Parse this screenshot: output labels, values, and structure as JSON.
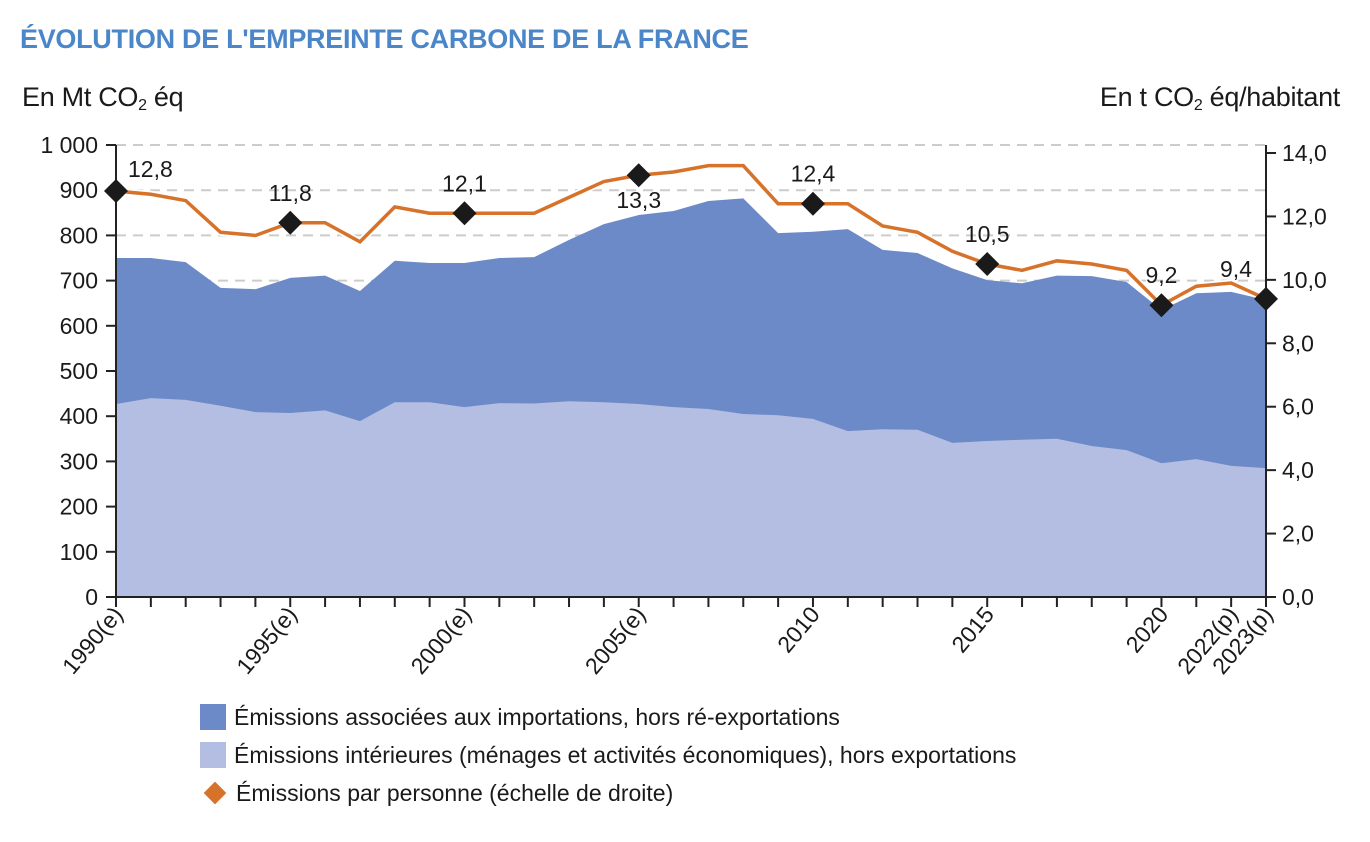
{
  "header": {
    "title": "ÉVOLUTION DE L'EMPREINTE CARBONE DE LA FRANCE",
    "left_unit_prefix": "En Mt CO",
    "left_unit_sub": "2",
    "left_unit_suffix": " éq",
    "right_unit_prefix": "En t CO",
    "right_unit_sub": "2",
    "right_unit_suffix": " éq/habitant"
  },
  "colors": {
    "title": "#4A86C8",
    "imports": "#6D8AC8",
    "domestic": "#B4BEE3",
    "per_person_line": "#D7722A",
    "marker": "#1a1a1a",
    "grid": "#cccccc"
  },
  "chart_data": {
    "type": "area",
    "title": "ÉVOLUTION DE L'EMPREINTE CARBONE DE LA FRANCE",
    "xlabel": "",
    "ylabel": "En Mt CO2 éq",
    "y2label": "En t CO2 éq/habitant",
    "ylim": [
      0,
      1000
    ],
    "y2lim": [
      0,
      14
    ],
    "yticks": [
      "0",
      "100",
      "200",
      "300",
      "400",
      "500",
      "600",
      "700",
      "800",
      "900",
      "1 000"
    ],
    "yticks_values": [
      0,
      100,
      200,
      300,
      400,
      500,
      600,
      700,
      800,
      900,
      1000
    ],
    "y2ticks": [
      "0,0",
      "2,0",
      "4,0",
      "6,0",
      "8,0",
      "10,0",
      "12,0",
      "14,0"
    ],
    "y2ticks_values": [
      0,
      2,
      4,
      6,
      8,
      10,
      12,
      14
    ],
    "grid": "horizontal dashed at 700, 800, 900, 1000",
    "grid_values": [
      700,
      800,
      900,
      1000
    ],
    "x": [
      1990,
      1991,
      1992,
      1993,
      1994,
      1995,
      1996,
      1997,
      1998,
      1999,
      2000,
      2001,
      2002,
      2003,
      2004,
      2005,
      2006,
      2007,
      2008,
      2009,
      2010,
      2011,
      2012,
      2013,
      2014,
      2015,
      2016,
      2017,
      2018,
      2019,
      2020,
      2021,
      2022,
      2023
    ],
    "xtick_labels": [
      {
        "x": 1990,
        "label": "1990(e)"
      },
      {
        "x": 1995,
        "label": "1995(e)"
      },
      {
        "x": 2000,
        "label": "2000(e)"
      },
      {
        "x": 2005,
        "label": "2005(e)"
      },
      {
        "x": 2010,
        "label": "2010"
      },
      {
        "x": 2015,
        "label": "2015"
      },
      {
        "x": 2020,
        "label": "2020"
      },
      {
        "x": 2022,
        "label": "2022(p)"
      },
      {
        "x": 2023,
        "label": "2023(p)"
      }
    ],
    "series": [
      {
        "name": "Émissions intérieures (ménages et activités économiques), hors exportations",
        "axis": "left",
        "stack": "bottom",
        "values": [
          427,
          440,
          436,
          423,
          409,
          407,
          413,
          389,
          431,
          431,
          420,
          429,
          428,
          433,
          431,
          427,
          420,
          416,
          405,
          402,
          394,
          367,
          371,
          370,
          341,
          345,
          348,
          350,
          334,
          325,
          296,
          305,
          290,
          285
        ]
      },
      {
        "name": "Émissions associées aux importations, hors ré-exportations",
        "axis": "left",
        "stack": "top",
        "total_values": [
          750,
          750,
          741,
          684,
          681,
          706,
          711,
          677,
          744,
          739,
          739,
          750,
          752,
          790,
          825,
          845,
          854,
          876,
          882,
          805,
          808,
          814,
          768,
          761,
          727,
          701,
          694,
          711,
          710,
          697,
          635,
          672,
          675,
          657
        ]
      },
      {
        "name": "Émissions par personne (échelle de droite)",
        "axis": "right",
        "type": "line",
        "values": [
          12.8,
          12.7,
          12.5,
          11.5,
          11.4,
          11.8,
          11.8,
          11.2,
          12.3,
          12.1,
          12.1,
          12.1,
          12.1,
          12.6,
          13.1,
          13.3,
          13.4,
          13.6,
          13.6,
          12.4,
          12.4,
          12.4,
          11.7,
          11.5,
          10.9,
          10.5,
          10.3,
          10.6,
          10.5,
          10.3,
          9.2,
          9.8,
          9.9,
          9.4
        ]
      }
    ],
    "annotations": [
      {
        "x": 1990,
        "label": "12,8",
        "position": "above-right"
      },
      {
        "x": 1995,
        "label": "11,8",
        "position": "above"
      },
      {
        "x": 2000,
        "label": "12,1",
        "position": "above"
      },
      {
        "x": 2005,
        "label": "13,3",
        "position": "below"
      },
      {
        "x": 2010,
        "label": "12,4",
        "position": "above"
      },
      {
        "x": 2015,
        "label": "10,5",
        "position": "above"
      },
      {
        "x": 2020,
        "label": "9,2",
        "position": "above"
      },
      {
        "x": 2023,
        "label": "9,4",
        "position": "above-left"
      }
    ],
    "legend": {
      "position": "bottom",
      "items": [
        {
          "label": "Émissions associées aux importations, hors ré-exportations",
          "marker": "square",
          "color": "#6D8AC8"
        },
        {
          "label": "Émissions intérieures (ménages et activités économiques), hors exportations",
          "marker": "square",
          "color": "#B4BEE3"
        },
        {
          "label": "Émissions par personne (échelle de droite)",
          "marker": "diamond",
          "color": "#D7722A"
        }
      ]
    }
  }
}
